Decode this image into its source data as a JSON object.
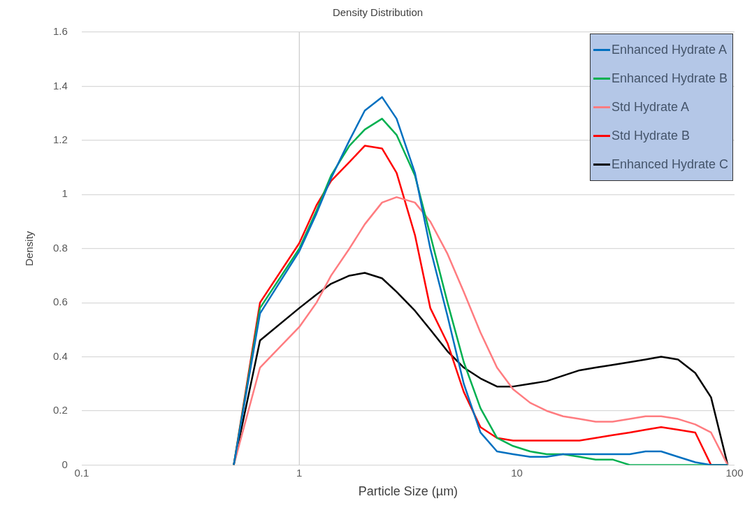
{
  "chart_data": {
    "type": "line",
    "title": "Density Distribution",
    "xlabel": "Particle Size (µm)",
    "ylabel": "Density",
    "x": [
      0.5,
      0.66,
      1.0,
      1.2,
      1.4,
      1.7,
      2.0,
      2.4,
      2.8,
      3.4,
      4,
      4.8,
      5.7,
      6.8,
      8.1,
      9.6,
      11.5,
      13.7,
      16.3,
      19.4,
      23,
      27.5,
      33,
      39,
      46,
      55,
      66,
      78,
      93
    ],
    "series": [
      {
        "name": "Enhanced Hydrate A",
        "color": "#0070c0",
        "values": [
          0,
          0.56,
          0.79,
          0.93,
          1.06,
          1.2,
          1.31,
          1.36,
          1.28,
          1.08,
          0.8,
          0.55,
          0.3,
          0.12,
          0.05,
          0.04,
          0.03,
          0.03,
          0.04,
          0.04,
          0.04,
          0.04,
          0.04,
          0.05,
          0.05,
          0.03,
          0.01,
          0,
          0
        ]
      },
      {
        "name": "Enhanced Hydrate B",
        "color": "#00b050",
        "values": [
          0,
          0.58,
          0.8,
          0.94,
          1.07,
          1.18,
          1.24,
          1.28,
          1.22,
          1.07,
          0.85,
          0.6,
          0.38,
          0.21,
          0.1,
          0.07,
          0.05,
          0.04,
          0.04,
          0.03,
          0.02,
          0.02,
          0,
          0,
          0,
          0,
          0,
          0,
          0
        ]
      },
      {
        "name": "Std Hydrate A",
        "color": "#ff7c80",
        "values": [
          0,
          0.36,
          0.51,
          0.6,
          0.7,
          0.8,
          0.89,
          0.97,
          0.99,
          0.97,
          0.9,
          0.78,
          0.64,
          0.49,
          0.36,
          0.28,
          0.23,
          0.2,
          0.18,
          0.17,
          0.16,
          0.16,
          0.17,
          0.18,
          0.18,
          0.17,
          0.15,
          0.12,
          0
        ]
      },
      {
        "name": "Std Hydrate B",
        "color": "#ff0000",
        "values": [
          0,
          0.6,
          0.82,
          0.96,
          1.05,
          1.12,
          1.18,
          1.17,
          1.08,
          0.85,
          0.58,
          0.45,
          0.27,
          0.14,
          0.1,
          0.09,
          0.09,
          0.09,
          0.09,
          0.09,
          0.1,
          0.11,
          0.12,
          0.13,
          0.14,
          0.13,
          0.12,
          0,
          0
        ]
      },
      {
        "name": "Enhanced Hydrate C",
        "color": "#000000",
        "values": [
          0,
          0.46,
          0.58,
          0.63,
          0.67,
          0.7,
          0.71,
          0.69,
          0.64,
          0.57,
          0.5,
          0.42,
          0.36,
          0.32,
          0.29,
          0.29,
          0.3,
          0.31,
          0.33,
          0.35,
          0.36,
          0.37,
          0.38,
          0.39,
          0.4,
          0.39,
          0.34,
          0.25,
          0
        ]
      }
    ],
    "log": "x",
    "xlim": [
      0.1,
      100
    ],
    "xticks": [
      0.1,
      1,
      10,
      100
    ],
    "ylim": [
      0,
      1.6
    ],
    "yticks": [
      0,
      0.2,
      0.4,
      0.6,
      0.8,
      1,
      1.2,
      1.4,
      1.6
    ],
    "grid": "y",
    "legend": "top right",
    "marker": "none",
    "line_style": "solid",
    "ref_lines": [
      {
        "axis": "x",
        "value": 1,
        "color": "#bfbfbf"
      }
    ]
  }
}
